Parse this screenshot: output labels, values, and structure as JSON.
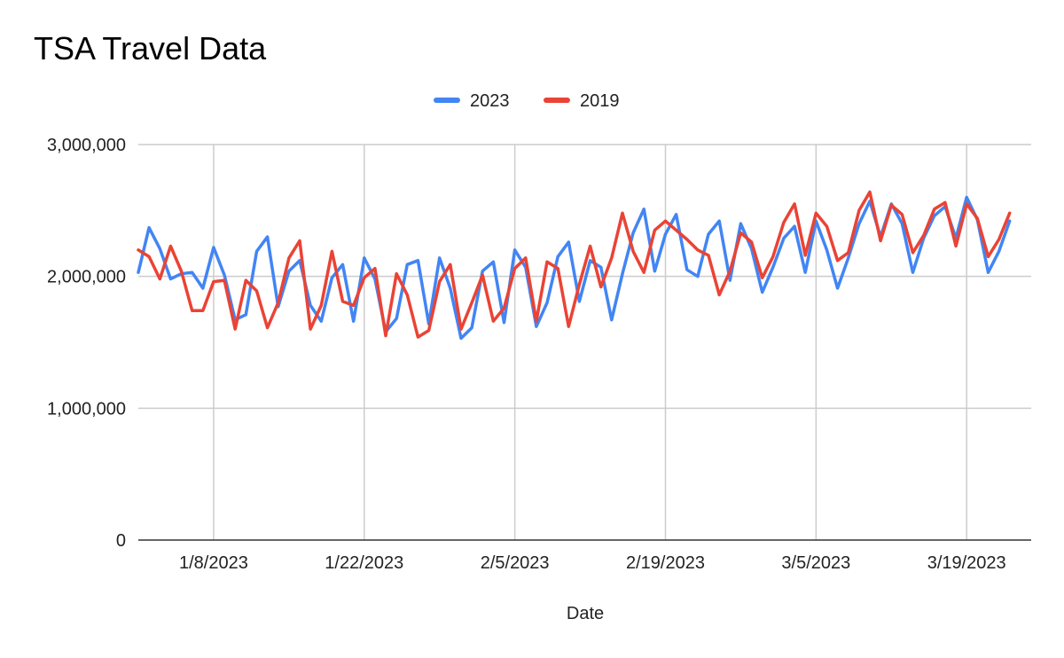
{
  "chart_data": {
    "type": "line",
    "title": "TSA Travel Data",
    "xlabel": "Date",
    "ylabel": "",
    "ylim": [
      0,
      3000000
    ],
    "y_ticks": [
      0,
      1000000,
      2000000,
      3000000
    ],
    "y_tick_labels": [
      "0",
      "1,000,000",
      "2,000,000",
      "3,000,000"
    ],
    "x_start": "2023-01-01",
    "x_end": "2023-03-25",
    "x_ticks": [
      "2023-01-08",
      "2023-01-22",
      "2023-02-05",
      "2023-02-19",
      "2023-03-05",
      "2023-03-19"
    ],
    "x_tick_labels": [
      "1/8/2023",
      "1/22/2023",
      "2/5/2023",
      "2/19/2023",
      "3/5/2023",
      "3/19/2023"
    ],
    "grid": true,
    "legend_position": "top",
    "series": [
      {
        "name": "2023",
        "color": "#4285f4",
        "values": [
          2030000,
          2370000,
          2210000,
          1980000,
          2020000,
          2030000,
          1910000,
          2220000,
          2010000,
          1670000,
          1710000,
          2190000,
          2300000,
          1770000,
          2040000,
          2120000,
          1780000,
          1660000,
          1990000,
          2090000,
          1660000,
          2140000,
          1980000,
          1580000,
          1680000,
          2090000,
          2120000,
          1640000,
          2140000,
          1910000,
          1530000,
          1610000,
          2040000,
          2110000,
          1650000,
          2200000,
          2070000,
          1620000,
          1800000,
          2150000,
          2260000,
          1810000,
          2120000,
          2070000,
          1670000,
          2020000,
          2330000,
          2510000,
          2040000,
          2320000,
          2470000,
          2050000,
          2000000,
          2320000,
          2420000,
          1970000,
          2400000,
          2210000,
          1880000,
          2070000,
          2290000,
          2380000,
          2030000,
          2420000,
          2200000,
          1910000,
          2140000,
          2400000,
          2570000,
          2300000,
          2550000,
          2400000,
          2030000,
          2290000,
          2460000,
          2530000,
          2290000,
          2600000,
          2430000,
          2030000,
          2190000,
          2420000
        ]
      },
      {
        "name": "2019",
        "color": "#ea4335",
        "values": [
          2200000,
          2150000,
          1980000,
          2230000,
          2040000,
          1740000,
          1740000,
          1960000,
          1970000,
          1600000,
          1970000,
          1890000,
          1610000,
          1800000,
          2140000,
          2270000,
          1600000,
          1780000,
          2190000,
          1810000,
          1780000,
          1990000,
          2060000,
          1550000,
          2020000,
          1860000,
          1540000,
          1590000,
          1960000,
          2090000,
          1600000,
          1800000,
          2010000,
          1660000,
          1760000,
          2060000,
          2140000,
          1660000,
          2110000,
          2060000,
          1620000,
          1940000,
          2230000,
          1920000,
          2140000,
          2480000,
          2190000,
          2030000,
          2350000,
          2420000,
          2350000,
          2280000,
          2200000,
          2160000,
          1860000,
          2040000,
          2330000,
          2260000,
          1990000,
          2150000,
          2410000,
          2550000,
          2160000,
          2480000,
          2380000,
          2120000,
          2180000,
          2500000,
          2640000,
          2270000,
          2540000,
          2470000,
          2180000,
          2310000,
          2510000,
          2560000,
          2230000,
          2550000,
          2440000,
          2150000,
          2280000,
          2480000
        ]
      }
    ]
  }
}
